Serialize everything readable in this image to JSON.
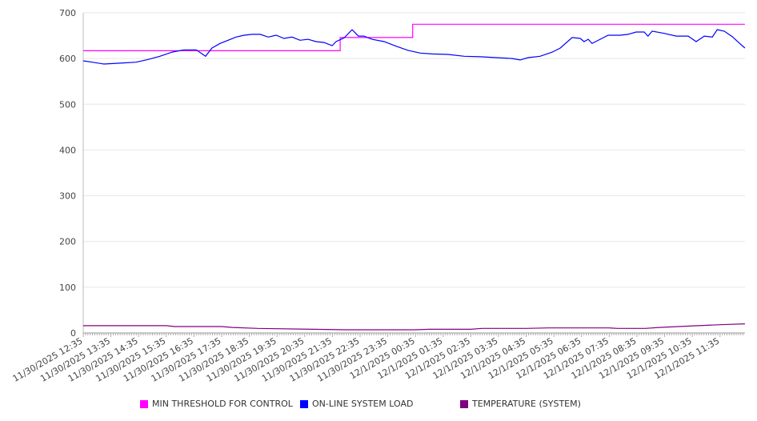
{
  "chart_data": {
    "type": "line",
    "title": "",
    "xlabel": "",
    "ylabel": "",
    "x_unit": "hours since 11/30/2025 12:35",
    "xlim": [
      0,
      23.9
    ],
    "ylim": [
      0,
      700
    ],
    "yticks": [
      0,
      100,
      200,
      300,
      400,
      500,
      600,
      700
    ],
    "xtick_labels": [
      "11/30/2025 12:35",
      "11/30/2025 13:35",
      "11/30/2025 14:35",
      "11/30/2025 15:35",
      "11/30/2025 16:35",
      "11/30/2025 17:35",
      "11/30/2025 18:35",
      "11/30/2025 19:35",
      "11/30/2025 20:35",
      "11/30/2025 21:35",
      "11/30/2025 22:35",
      "11/30/2025 23:35",
      "12/1/2025 00:35",
      "12/1/2025 01:35",
      "12/1/2025 02:35",
      "12/1/2025 03:35",
      "12/1/2025 04:35",
      "12/1/2025 05:35",
      "12/1/2025 06:35",
      "12/1/2025 07:35",
      "12/1/2025 08:35",
      "12/1/2025 09:35",
      "12/1/2025 10:35",
      "12/1/2025 11:35"
    ],
    "grid": true,
    "legend_position": "bottom",
    "series": [
      {
        "name": "MIN THRESHOLD FOR CONTROL",
        "color": "#ff00ff",
        "step": true,
        "points": [
          [
            0,
            617
          ],
          [
            9.28,
            617
          ],
          [
            9.28,
            646
          ],
          [
            11.9,
            646
          ],
          [
            11.9,
            675
          ],
          [
            23.9,
            675
          ]
        ]
      },
      {
        "name": "ON-LINE SYSTEM LOAD",
        "color": "#0000ff",
        "step": false,
        "points": [
          [
            0,
            595
          ],
          [
            0.32,
            592
          ],
          [
            0.75,
            588
          ],
          [
            1.33,
            590
          ],
          [
            1.91,
            592
          ],
          [
            2.34,
            598
          ],
          [
            2.77,
            605
          ],
          [
            3.21,
            614
          ],
          [
            3.64,
            619
          ],
          [
            4.08,
            619
          ],
          [
            4.42,
            605
          ],
          [
            4.65,
            623
          ],
          [
            4.94,
            633
          ],
          [
            5.23,
            640
          ],
          [
            5.52,
            647
          ],
          [
            5.81,
            651
          ],
          [
            6.1,
            653
          ],
          [
            6.39,
            653
          ],
          [
            6.68,
            647
          ],
          [
            6.97,
            651
          ],
          [
            7.25,
            644
          ],
          [
            7.54,
            647
          ],
          [
            7.83,
            640
          ],
          [
            8.12,
            642
          ],
          [
            8.41,
            637
          ],
          [
            8.7,
            635
          ],
          [
            8.99,
            628
          ],
          [
            9.13,
            637
          ],
          [
            9.42,
            645
          ],
          [
            9.71,
            663
          ],
          [
            9.94,
            649
          ],
          [
            10.14,
            649
          ],
          [
            10.43,
            642
          ],
          [
            10.87,
            637
          ],
          [
            11.3,
            627
          ],
          [
            11.73,
            618
          ],
          [
            12.17,
            612
          ],
          [
            12.6,
            610
          ],
          [
            13.18,
            609
          ],
          [
            13.76,
            605
          ],
          [
            14.34,
            604
          ],
          [
            14.91,
            602
          ],
          [
            15.49,
            600
          ],
          [
            15.78,
            597
          ],
          [
            16.07,
            602
          ],
          [
            16.5,
            605
          ],
          [
            16.94,
            614
          ],
          [
            17.23,
            623
          ],
          [
            17.66,
            646
          ],
          [
            17.95,
            644
          ],
          [
            18.09,
            637
          ],
          [
            18.24,
            642
          ],
          [
            18.38,
            633
          ],
          [
            18.67,
            642
          ],
          [
            18.96,
            651
          ],
          [
            19.39,
            651
          ],
          [
            19.68,
            653
          ],
          [
            19.97,
            658
          ],
          [
            20.26,
            658
          ],
          [
            20.4,
            649
          ],
          [
            20.55,
            660
          ],
          [
            20.98,
            655
          ],
          [
            21.42,
            649
          ],
          [
            21.85,
            649
          ],
          [
            22.14,
            637
          ],
          [
            22.43,
            649
          ],
          [
            22.72,
            647
          ],
          [
            22.9,
            663
          ],
          [
            23.15,
            660
          ],
          [
            23.44,
            648
          ],
          [
            23.73,
            632
          ],
          [
            23.9,
            623
          ]
        ]
      },
      {
        "name": "TEMPERATURE (SYSTEM)",
        "color": "#800080",
        "step": false,
        "points": [
          [
            0,
            16
          ],
          [
            3,
            16
          ],
          [
            3.3,
            14
          ],
          [
            5,
            14
          ],
          [
            5.4,
            12
          ],
          [
            6.3,
            10
          ],
          [
            8.3,
            8
          ],
          [
            9.5,
            7
          ],
          [
            12,
            7
          ],
          [
            12.5,
            8
          ],
          [
            14,
            8
          ],
          [
            14.4,
            10
          ],
          [
            16,
            10
          ],
          [
            16.8,
            11
          ],
          [
            19,
            11
          ],
          [
            19.3,
            10
          ],
          [
            20.3,
            10
          ],
          [
            20.8,
            12
          ],
          [
            21.5,
            14
          ],
          [
            22.2,
            16
          ],
          [
            23,
            18
          ],
          [
            23.9,
            20
          ]
        ]
      }
    ]
  }
}
